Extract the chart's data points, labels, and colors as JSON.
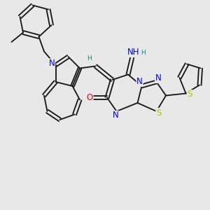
{
  "background_color": "#e8e8e8",
  "figsize": [
    3.0,
    3.0
  ],
  "dpi": 100,
  "colors": {
    "C": "#1a1a1a",
    "N": "#0000ee",
    "O": "#ee0000",
    "S": "#bbbb00",
    "H": "#008888"
  },
  "lw": 1.35,
  "fs": 8.5,
  "fs_s": 6.5
}
